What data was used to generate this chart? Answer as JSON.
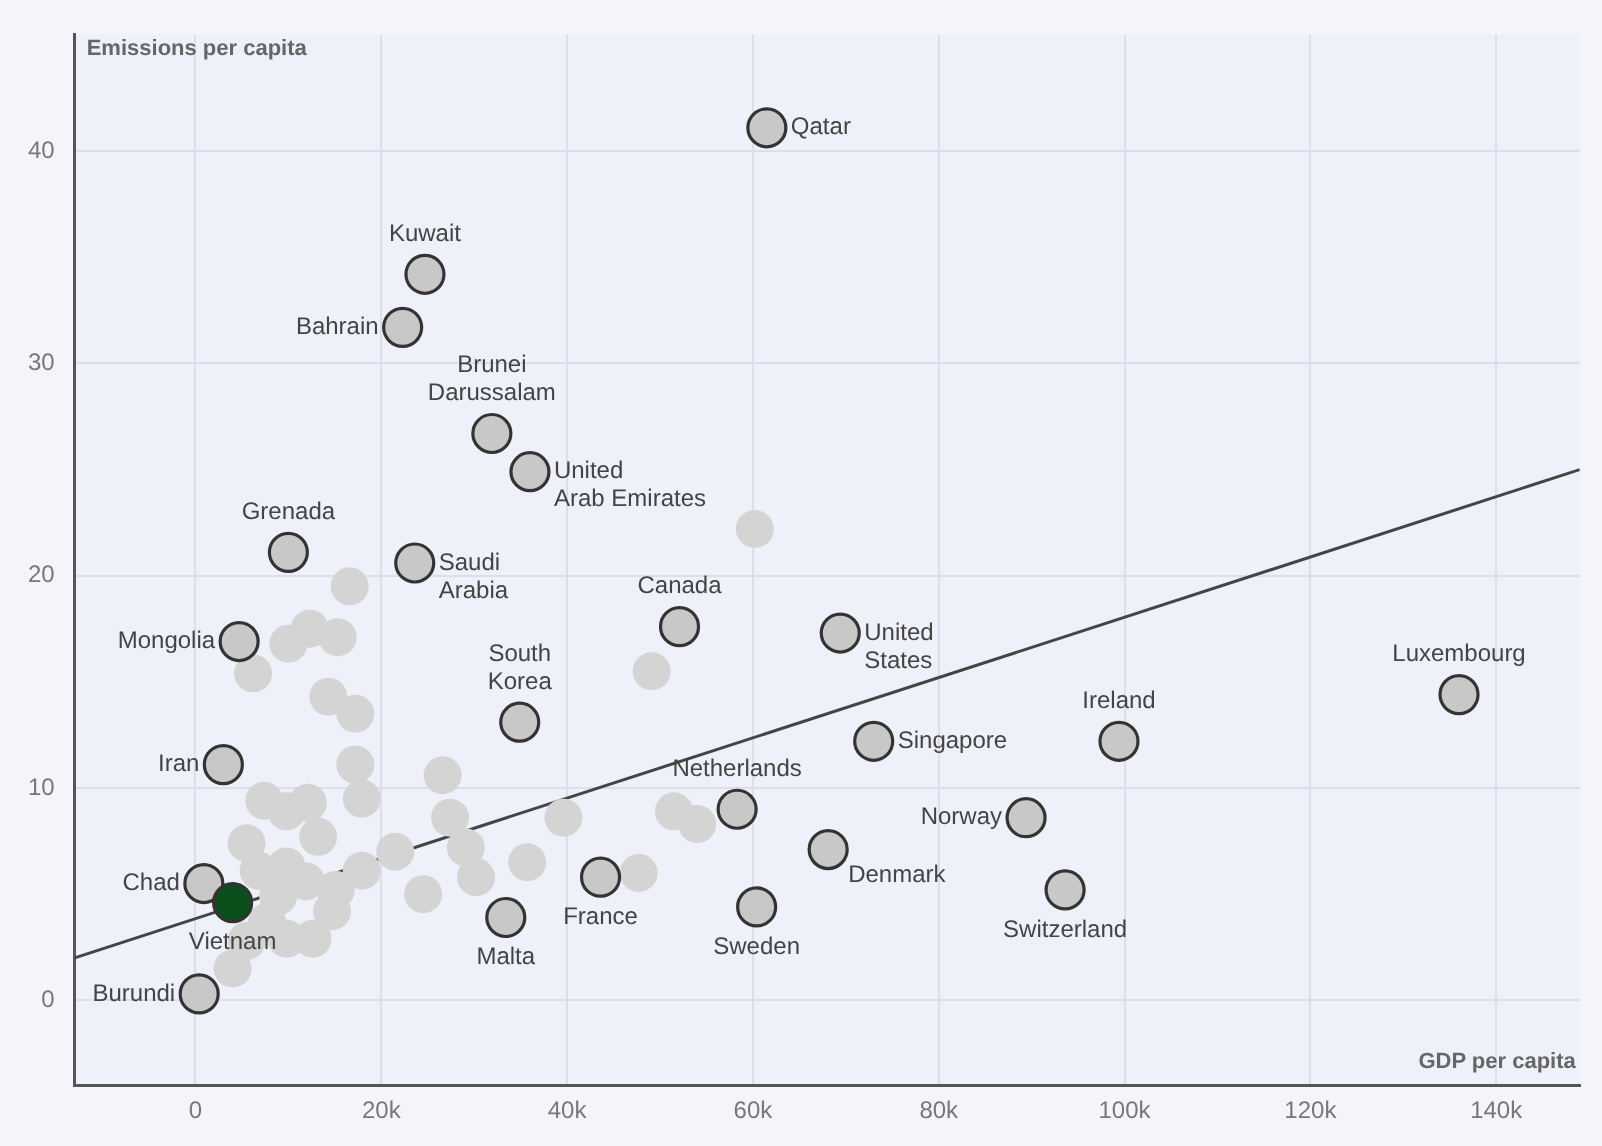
{
  "chart_data": {
    "type": "scatter",
    "xlabel": "GDP per capita",
    "ylabel": "Emissions per capita",
    "xlim": [
      -13000,
      149000
    ],
    "ylim": [
      -4,
      45.5
    ],
    "xticks": [
      {
        "value": 0,
        "label": "0"
      },
      {
        "value": 20000,
        "label": "20k"
      },
      {
        "value": 40000,
        "label": "40k"
      },
      {
        "value": 60000,
        "label": "60k"
      },
      {
        "value": 80000,
        "label": "80k"
      },
      {
        "value": 100000,
        "label": "100k"
      },
      {
        "value": 120000,
        "label": "120k"
      },
      {
        "value": 140000,
        "label": "140k"
      }
    ],
    "yticks": [
      0,
      10,
      20,
      30,
      40
    ],
    "grid": true,
    "legend": false,
    "marker": "circle",
    "series": [
      {
        "color": "#d4d4d4",
        "x": [
          16600,
          12300,
          10000,
          15300,
          6200,
          14300,
          17200,
          17200,
          17900,
          26600,
          27400,
          39600,
          49100,
          60200,
          51500,
          54000,
          35700,
          47700,
          29100,
          30200,
          24500,
          21500,
          17900,
          15100,
          14700,
          12600,
          7400,
          9800,
          12100,
          13200,
          5500,
          9800,
          6800,
          11900,
          8900,
          7700,
          9800,
          5500,
          4000
        ],
        "values": [
          19.5,
          17.5,
          16.8,
          17.1,
          15.4,
          14.3,
          13.5,
          11.1,
          9.5,
          10.6,
          8.6,
          8.6,
          15.5,
          22.2,
          8.9,
          8.3,
          6.5,
          6.0,
          7.2,
          5.8,
          5.0,
          7.0,
          6.1,
          5.2,
          4.2,
          2.9,
          9.4,
          8.9,
          9.3,
          7.7,
          7.4,
          6.3,
          6.1,
          5.6,
          4.9,
          3.7,
          2.9,
          2.8,
          1.5
        ]
      },
      {
        "color": "#c8c8c8",
        "x": [
          61500,
          24700,
          22300,
          31900,
          36000,
          10000,
          23600,
          52100,
          4700,
          69400,
          136000,
          34900,
          99400,
          73000,
          3000,
          58300,
          89400,
          68100,
          93600,
          43600,
          33400,
          60400,
          900,
          400
        ],
        "values": [
          41.1,
          34.2,
          31.7,
          26.7,
          24.9,
          21.1,
          20.6,
          17.6,
          16.9,
          17.3,
          14.4,
          13.1,
          12.2,
          12.2,
          11.1,
          9.0,
          8.6,
          7.1,
          5.2,
          5.8,
          3.9,
          4.4,
          5.5,
          0.3
        ]
      },
      {
        "color": "#0b4f1c",
        "x": [
          4000
        ],
        "values": [
          4.6
        ]
      },
      {
        "type": "line",
        "color": "#444444",
        "marker": "none",
        "x": [
          -13000,
          149000
        ],
        "values": [
          2.0,
          25.0
        ]
      }
    ],
    "annotations": [
      {
        "text": "Qatar",
        "x": 61500,
        "y": 41.1
      },
      {
        "text": "Kuwait",
        "x": 24700,
        "y": 34.2
      },
      {
        "text": "Bahrain",
        "x": 22300,
        "y": 31.7
      },
      {
        "text": "Brunei Darussalam",
        "x": 31900,
        "y": 26.7
      },
      {
        "text": "United Arab Emirates",
        "x": 36000,
        "y": 24.9
      },
      {
        "text": "Grenada",
        "x": 10000,
        "y": 21.1
      },
      {
        "text": "Saudi Arabia",
        "x": 23600,
        "y": 20.6
      },
      {
        "text": "Canada",
        "x": 52100,
        "y": 17.6
      },
      {
        "text": "Mongolia",
        "x": 4700,
        "y": 16.9
      },
      {
        "text": "United States",
        "x": 69400,
        "y": 17.3
      },
      {
        "text": "Luxembourg",
        "x": 136000,
        "y": 14.4
      },
      {
        "text": "South Korea",
        "x": 34900,
        "y": 13.1
      },
      {
        "text": "Ireland",
        "x": 99400,
        "y": 12.2
      },
      {
        "text": "Singapore",
        "x": 73000,
        "y": 12.2
      },
      {
        "text": "Iran",
        "x": 3000,
        "y": 11.1
      },
      {
        "text": "Netherlands",
        "x": 58300,
        "y": 9.0
      },
      {
        "text": "Norway",
        "x": 89400,
        "y": 8.6
      },
      {
        "text": "Denmark",
        "x": 68100,
        "y": 7.1
      },
      {
        "text": "Switzerland",
        "x": 93600,
        "y": 5.2
      },
      {
        "text": "France",
        "x": 43600,
        "y": 5.8
      },
      {
        "text": "Malta",
        "x": 33400,
        "y": 3.9
      },
      {
        "text": "Sweden",
        "x": 60400,
        "y": 4.4
      },
      {
        "text": "Chad",
        "x": 900,
        "y": 5.5
      },
      {
        "text": "Vietnam",
        "x": 4000,
        "y": 4.6
      },
      {
        "text": "Burundi",
        "x": 400,
        "y": 0.3
      }
    ]
  }
}
